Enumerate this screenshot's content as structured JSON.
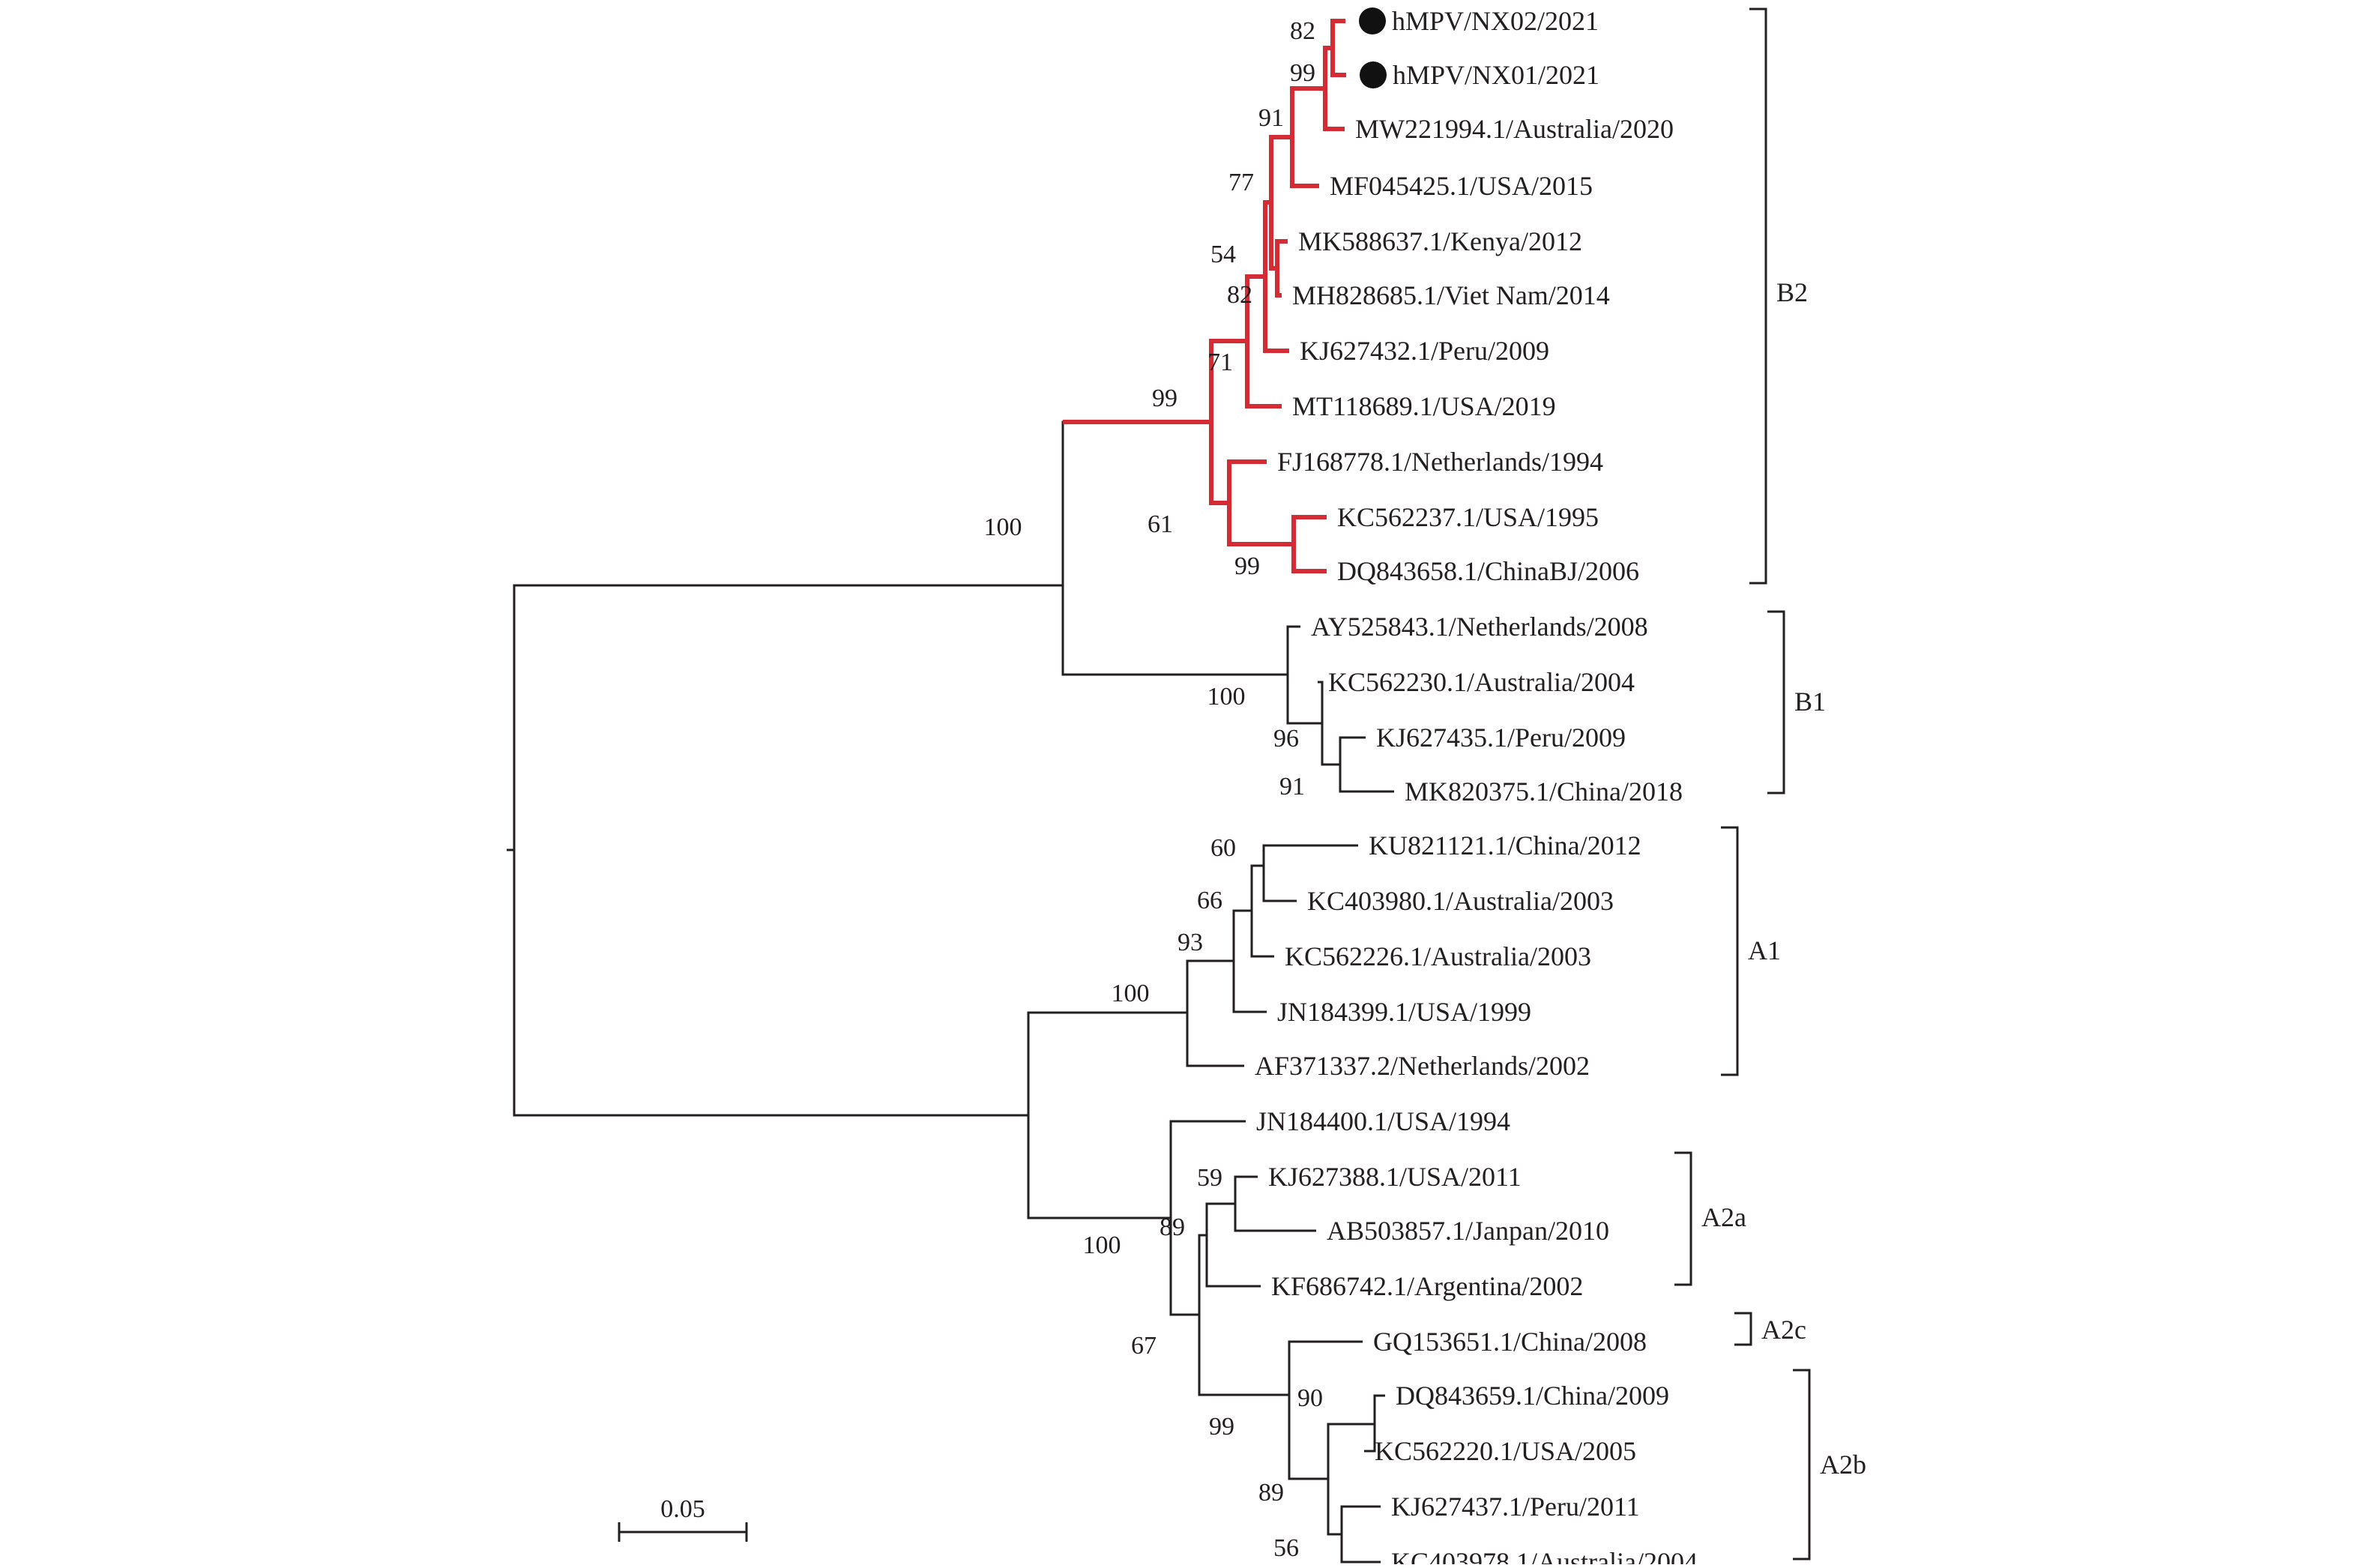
{
  "colors": {
    "highlight": "#d42b34",
    "line": "#231f20",
    "marker": "#111111"
  },
  "taxa": [
    {
      "id": "nx02",
      "label": "hMPV/NX02/2021",
      "marker": true,
      "highlight": true
    },
    {
      "id": "nx01",
      "label": "hMPV/NX01/2021",
      "marker": true,
      "highlight": true
    },
    {
      "id": "mw221994",
      "label": "MW221994.1/Australia/2020",
      "marker": false,
      "highlight": true
    },
    {
      "id": "mf045425",
      "label": "MF045425.1/USA/2015",
      "marker": false,
      "highlight": true
    },
    {
      "id": "mk588637",
      "label": "MK588637.1/Kenya/2012",
      "marker": false,
      "highlight": true
    },
    {
      "id": "mh828685",
      "label": "MH828685.1/Viet Nam/2014",
      "marker": false,
      "highlight": true
    },
    {
      "id": "kj627432",
      "label": "KJ627432.1/Peru/2009",
      "marker": false,
      "highlight": true
    },
    {
      "id": "mt118689",
      "label": "MT118689.1/USA/2019",
      "marker": false,
      "highlight": true
    },
    {
      "id": "fj168778",
      "label": "FJ168778.1/Netherlands/1994",
      "marker": false,
      "highlight": true
    },
    {
      "id": "kc562237",
      "label": "KC562237.1/USA/1995",
      "marker": false,
      "highlight": true
    },
    {
      "id": "dq843658",
      "label": "DQ843658.1/ChinaBJ/2006",
      "marker": false,
      "highlight": true
    },
    {
      "id": "ay525843",
      "label": "AY525843.1/Netherlands/2008",
      "marker": false,
      "highlight": false
    },
    {
      "id": "kc562230",
      "label": "KC562230.1/Australia/2004",
      "marker": false,
      "highlight": false
    },
    {
      "id": "kj627435",
      "label": "KJ627435.1/Peru/2009",
      "marker": false,
      "highlight": false
    },
    {
      "id": "mk820375",
      "label": "MK820375.1/China/2018",
      "marker": false,
      "highlight": false
    },
    {
      "id": "ku821121",
      "label": "KU821121.1/China/2012",
      "marker": false,
      "highlight": false
    },
    {
      "id": "kc403980",
      "label": "KC403980.1/Australia/2003",
      "marker": false,
      "highlight": false
    },
    {
      "id": "kc562226",
      "label": "KC562226.1/Australia/2003",
      "marker": false,
      "highlight": false
    },
    {
      "id": "jn184399",
      "label": "JN184399.1/USA/1999",
      "marker": false,
      "highlight": false
    },
    {
      "id": "af371337",
      "label": "AF371337.2/Netherlands/2002",
      "marker": false,
      "highlight": false
    },
    {
      "id": "jn184400",
      "label": "JN184400.1/USA/1994",
      "marker": false,
      "highlight": false
    },
    {
      "id": "kj627388",
      "label": "KJ627388.1/USA/2011",
      "marker": false,
      "highlight": false
    },
    {
      "id": "ab503857",
      "label": "AB503857.1/Janpan/2010",
      "marker": false,
      "highlight": false
    },
    {
      "id": "kf686742",
      "label": "KF686742.1/Argentina/2002",
      "marker": false,
      "highlight": false
    },
    {
      "id": "gq153651",
      "label": "GQ153651.1/China/2008",
      "marker": false,
      "highlight": false
    },
    {
      "id": "dq843659",
      "label": "DQ843659.1/China/2009",
      "marker": false,
      "highlight": false
    },
    {
      "id": "kc562220",
      "label": "KC562220.1/USA/2005",
      "marker": false,
      "highlight": false
    },
    {
      "id": "kj627437",
      "label": "KJ627437.1/Peru/2011",
      "marker": false,
      "highlight": false
    },
    {
      "id": "kc403978",
      "label": "KC403978.1/Australia/2004",
      "marker": false,
      "highlight": false
    }
  ],
  "bootstrap": [
    "82",
    "99",
    "91",
    "77",
    "54",
    "82",
    "71",
    "99",
    "61",
    "99",
    "100",
    "100",
    "96",
    "91",
    "60",
    "66",
    "93",
    "100",
    "59",
    "89",
    "100",
    "67",
    "99",
    "90",
    "89",
    "56"
  ],
  "clades": [
    "B2",
    "B1",
    "A1",
    "A2a",
    "A2c",
    "A2b"
  ],
  "scale_bar": {
    "label": "0.05",
    "value": 0.05
  }
}
